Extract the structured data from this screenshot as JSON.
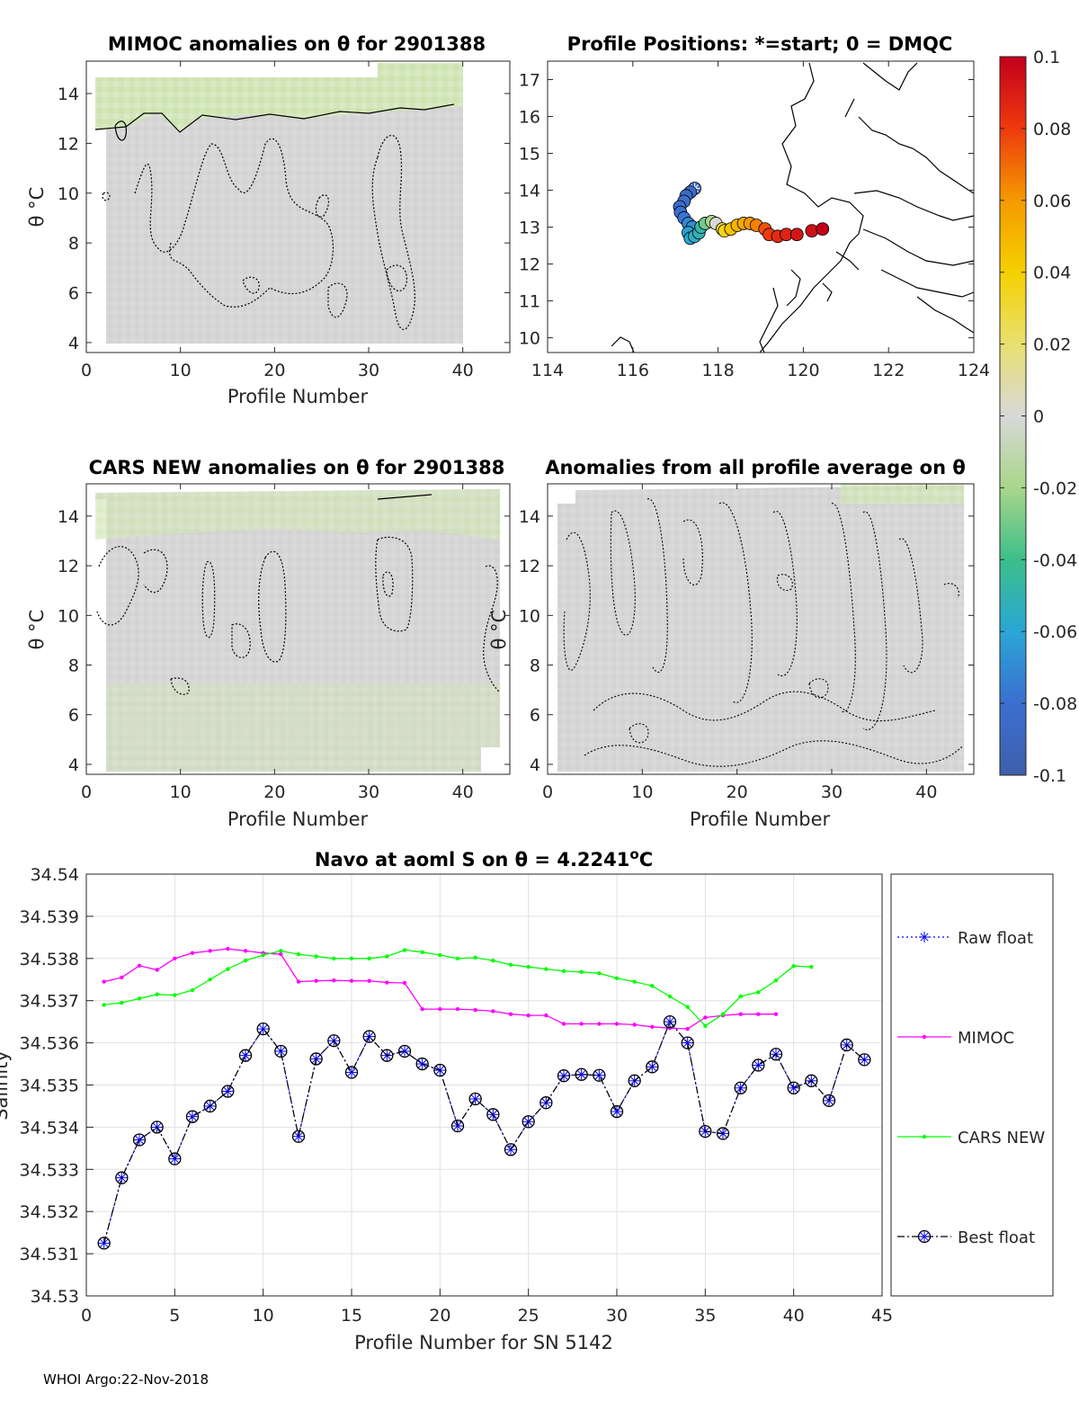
{
  "footer": "WHOI Argo:22-Nov-2018",
  "panels": {
    "mimoc": {
      "title": "MIMOC anomalies on θ  for 2901388",
      "xlabel": "Profile Number",
      "ylabel": "θ °C",
      "xticks": [
        "0",
        "10",
        "20",
        "30",
        "40"
      ],
      "yticks": [
        "4",
        "6",
        "8",
        "10",
        "12",
        "14"
      ],
      "xlim": [
        0,
        45
      ],
      "ylim": [
        3.6,
        15.3
      ]
    },
    "positions": {
      "title": "Profile Positions: *=start; 0 = DMQC",
      "xticks": [
        "114",
        "116",
        "118",
        "120",
        "122",
        "124"
      ],
      "yticks": [
        "10",
        "11",
        "12",
        "13",
        "14",
        "15",
        "16",
        "17"
      ],
      "xlim": [
        114,
        124
      ],
      "ylim": [
        9.6,
        17.5
      ],
      "points": [
        {
          "lon": 117.45,
          "lat": 14.05,
          "v": -0.09
        },
        {
          "lon": 117.35,
          "lat": 13.95,
          "v": -0.088
        },
        {
          "lon": 117.25,
          "lat": 13.85,
          "v": -0.085
        },
        {
          "lon": 117.2,
          "lat": 13.7,
          "v": -0.083
        },
        {
          "lon": 117.1,
          "lat": 13.55,
          "v": -0.082
        },
        {
          "lon": 117.12,
          "lat": 13.4,
          "v": -0.08
        },
        {
          "lon": 117.2,
          "lat": 13.25,
          "v": -0.078
        },
        {
          "lon": 117.3,
          "lat": 13.1,
          "v": -0.072
        },
        {
          "lon": 117.4,
          "lat": 13.0,
          "v": -0.068
        },
        {
          "lon": 117.3,
          "lat": 12.85,
          "v": -0.062
        },
        {
          "lon": 117.35,
          "lat": 12.7,
          "v": -0.058
        },
        {
          "lon": 117.45,
          "lat": 12.75,
          "v": -0.055
        },
        {
          "lon": 117.55,
          "lat": 12.85,
          "v": -0.052
        },
        {
          "lon": 117.6,
          "lat": 13.0,
          "v": -0.048
        },
        {
          "lon": 117.7,
          "lat": 13.1,
          "v": -0.03
        },
        {
          "lon": 117.85,
          "lat": 13.15,
          "v": -0.02
        },
        {
          "lon": 117.95,
          "lat": 13.1,
          "v": 0.0
        },
        {
          "lon": 118.1,
          "lat": 12.95,
          "v": 0.03
        },
        {
          "lon": 118.15,
          "lat": 12.9,
          "v": 0.035
        },
        {
          "lon": 118.3,
          "lat": 12.95,
          "v": 0.045
        },
        {
          "lon": 118.45,
          "lat": 13.05,
          "v": 0.05
        },
        {
          "lon": 118.6,
          "lat": 13.1,
          "v": 0.055
        },
        {
          "lon": 118.75,
          "lat": 13.1,
          "v": 0.06
        },
        {
          "lon": 118.9,
          "lat": 13.05,
          "v": 0.065
        },
        {
          "lon": 119.1,
          "lat": 12.95,
          "v": 0.075
        },
        {
          "lon": 119.2,
          "lat": 12.8,
          "v": 0.08
        },
        {
          "lon": 119.4,
          "lat": 12.75,
          "v": 0.085
        },
        {
          "lon": 119.6,
          "lat": 12.8,
          "v": 0.088
        },
        {
          "lon": 119.85,
          "lat": 12.8,
          "v": 0.092
        },
        {
          "lon": 120.2,
          "lat": 12.9,
          "v": 0.095
        },
        {
          "lon": 120.45,
          "lat": 12.95,
          "v": 0.1
        }
      ]
    },
    "cars": {
      "title": "CARS NEW anomalies on θ for 2901388",
      "xlabel": "Profile Number",
      "ylabel": "θ °C",
      "xticks": [
        "0",
        "10",
        "20",
        "30",
        "40"
      ],
      "yticks": [
        "4",
        "6",
        "8",
        "10",
        "12",
        "14"
      ],
      "xlim": [
        0,
        45
      ],
      "ylim": [
        3.6,
        15.3
      ]
    },
    "allavg": {
      "title": "Anomalies from all profile average on θ",
      "xlabel": "Profile Number",
      "ylabel": "θ °C",
      "xticks": [
        "0",
        "10",
        "20",
        "30",
        "40"
      ],
      "yticks": [
        "4",
        "6",
        "8",
        "10",
        "12",
        "14"
      ],
      "xlim": [
        0,
        45
      ],
      "ylim": [
        3.6,
        15.3
      ]
    }
  },
  "colorbar": {
    "ticks": [
      "0.1",
      "0.08",
      "0.06",
      "0.04",
      "0.02",
      "0",
      "-0.02",
      "-0.04",
      "-0.06",
      "-0.08",
      "-0.1"
    ]
  },
  "chart_data": [
    {
      "type": "line",
      "title": "Navo at aoml S on θ = 4.2241°C",
      "title_prefix": "Navo at aoml S on θ = 4.2241",
      "title_degree": "o",
      "title_suffix": "C",
      "xlabel": "Profile Number for SN 5142",
      "ylabel": "Salinity",
      "xlim": [
        0,
        45
      ],
      "ylim": [
        34.53,
        34.54
      ],
      "xticks": [
        "0",
        "5",
        "10",
        "15",
        "20",
        "25",
        "30",
        "35",
        "40",
        "45"
      ],
      "yticks": [
        "34.53",
        "34.531",
        "34.532",
        "34.533",
        "34.534",
        "34.535",
        "34.536",
        "34.537",
        "34.538",
        "34.539",
        "34.54"
      ],
      "grid": true,
      "legend_position": "right",
      "series": [
        {
          "name": "Raw float",
          "color": "#0000ff",
          "x": [
            1,
            2,
            3,
            4,
            5,
            6,
            7,
            8,
            9,
            10,
            11,
            12,
            13,
            14,
            15,
            16,
            17,
            18,
            19,
            20,
            21,
            22,
            23,
            24,
            25,
            26,
            27,
            28,
            29,
            30,
            31,
            32,
            33,
            34,
            35,
            36,
            37,
            38,
            39,
            40,
            41,
            42,
            43,
            44
          ],
          "values": [
            34.53125,
            34.5328,
            34.5337,
            34.534,
            34.53325,
            34.53425,
            34.5345,
            34.53485,
            34.5357,
            34.53633,
            34.5358,
            34.53378,
            34.53562,
            34.53605,
            34.5353,
            34.53615,
            34.5357,
            34.5358,
            34.5355,
            34.53535,
            34.53403,
            34.53467,
            34.5343,
            34.53347,
            34.53413,
            34.53458,
            34.53522,
            34.53525,
            34.53523,
            34.53437,
            34.5351,
            34.53543,
            34.5365,
            34.536,
            34.5339,
            34.53385,
            34.53493,
            34.53547,
            34.53573,
            34.53493,
            34.5351,
            34.53463,
            34.53595,
            34.5356
          ]
        },
        {
          "name": "MIMOC",
          "color": "#ff00ff",
          "x": [
            1,
            2,
            3,
            4,
            5,
            6,
            7,
            8,
            9,
            10,
            11,
            12,
            13,
            14,
            15,
            16,
            17,
            18,
            19,
            20,
            21,
            22,
            23,
            24,
            25,
            26,
            27,
            28,
            29,
            30,
            31,
            32,
            33,
            34,
            35,
            36,
            37,
            38,
            39
          ],
          "values": [
            34.53745,
            34.53755,
            34.53783,
            34.53773,
            34.538,
            34.53813,
            34.53818,
            34.53823,
            34.53818,
            34.53813,
            34.5381,
            34.53745,
            34.53747,
            34.53748,
            34.53747,
            34.53747,
            34.53743,
            34.53742,
            34.5368,
            34.5368,
            34.5368,
            34.53678,
            34.53675,
            34.53668,
            34.53665,
            34.53665,
            34.53645,
            34.53645,
            34.53645,
            34.53645,
            34.53643,
            34.53638,
            34.53635,
            34.53633,
            34.5366,
            34.53665,
            34.53668,
            34.53668,
            34.53668
          ]
        },
        {
          "name": "CARS NEW",
          "color": "#00ff00",
          "x": [
            1,
            2,
            3,
            4,
            5,
            6,
            7,
            8,
            9,
            10,
            11,
            12,
            13,
            14,
            15,
            16,
            17,
            18,
            19,
            20,
            21,
            22,
            23,
            24,
            25,
            26,
            27,
            28,
            29,
            30,
            31,
            32,
            33,
            34,
            35,
            36,
            37,
            38,
            39,
            40,
            41
          ],
          "values": [
            34.5369,
            34.53695,
            34.53705,
            34.53715,
            34.53713,
            34.53725,
            34.5375,
            34.53775,
            34.53795,
            34.53808,
            34.53818,
            34.5381,
            34.53805,
            34.538,
            34.538,
            34.538,
            34.53805,
            34.5382,
            34.53815,
            34.53808,
            34.538,
            34.53802,
            34.53795,
            34.53785,
            34.5378,
            34.53775,
            34.5377,
            34.53768,
            34.53765,
            34.53753,
            34.53745,
            34.53735,
            34.5371,
            34.53685,
            34.5364,
            34.53668,
            34.5371,
            34.5372,
            34.53748,
            34.53782,
            34.5378
          ]
        },
        {
          "name": "Best float",
          "color": "#000000",
          "x": [
            1,
            2,
            3,
            4,
            5,
            6,
            7,
            8,
            9,
            10,
            11,
            12,
            13,
            14,
            15,
            16,
            17,
            18,
            19,
            20,
            21,
            22,
            23,
            24,
            25,
            26,
            27,
            28,
            29,
            30,
            31,
            32,
            33,
            34,
            35,
            36,
            37,
            38,
            39,
            40,
            41,
            42,
            43,
            44
          ],
          "values": [
            34.53125,
            34.5328,
            34.5337,
            34.534,
            34.53325,
            34.53425,
            34.5345,
            34.53485,
            34.5357,
            34.53633,
            34.5358,
            34.53378,
            34.53562,
            34.53605,
            34.5353,
            34.53615,
            34.5357,
            34.5358,
            34.5355,
            34.53535,
            34.53403,
            34.53467,
            34.5343,
            34.53347,
            34.53413,
            34.53458,
            34.53522,
            34.53525,
            34.53523,
            34.53437,
            34.5351,
            34.53543,
            34.5365,
            34.536,
            34.5339,
            34.53385,
            34.53493,
            34.53547,
            34.53573,
            34.53493,
            34.5351,
            34.53463,
            34.53595,
            34.5356
          ]
        }
      ]
    }
  ]
}
